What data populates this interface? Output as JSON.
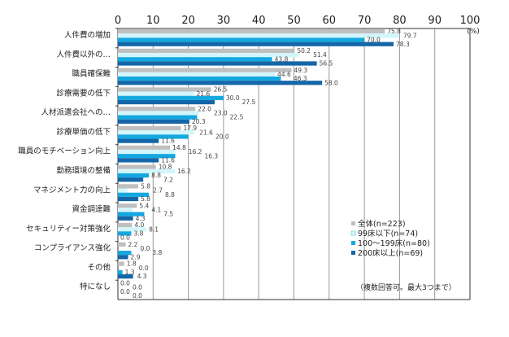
{
  "chart_data": {
    "type": "bar",
    "orientation": "horizontal",
    "unit_label": "(%)",
    "xlim": [
      0,
      100
    ],
    "xticks": [
      0,
      10,
      20,
      30,
      40,
      50,
      60,
      70,
      80,
      90,
      100
    ],
    "grid": true,
    "legend_position": "bottom-right",
    "note": "（複数回答可。最大3つまで）",
    "categories": [
      "人件費の増加",
      "人件費以外の…",
      "職員確保難",
      "診療需要の低下",
      "人材派遣会社への…",
      "診療単価の低下",
      "職員のモチベーション向上",
      "勤務環境の整備",
      "マネジメント力の向上",
      "資金調達難",
      "セキュリティー対策強化",
      "コンプライアンス強化",
      "その他",
      "特になし"
    ],
    "series": [
      {
        "name": "全体(n=223)",
        "color": "#bfbfbf",
        "values": [
          75.8,
          50.2,
          49.3,
          26.5,
          22.0,
          17.9,
          14.8,
          10.8,
          5.8,
          5.4,
          4.0,
          2.2,
          1.8,
          0.0
        ]
      },
      {
        "name": "99床以下(n=74)",
        "color": "#d2f6fc",
        "values": [
          79.7,
          51.4,
          44.6,
          21.6,
          23.0,
          21.6,
          16.2,
          16.2,
          2.7,
          4.1,
          8.1,
          0.0,
          0.0,
          0.0
        ]
      },
      {
        "name": "100～199床(n=80)",
        "color": "#14a8e0",
        "values": [
          70.0,
          43.8,
          46.3,
          30.0,
          22.5,
          20.0,
          16.3,
          8.8,
          8.8,
          7.5,
          3.8,
          3.8,
          1.3,
          0.0
        ]
      },
      {
        "name": "200床以上(n=69)",
        "color": "#1466a8",
        "values": [
          78.3,
          56.5,
          58.0,
          27.5,
          20.3,
          11.6,
          11.6,
          7.2,
          5.8,
          4.3,
          0.0,
          2.9,
          4.3,
          0.0
        ]
      }
    ]
  }
}
